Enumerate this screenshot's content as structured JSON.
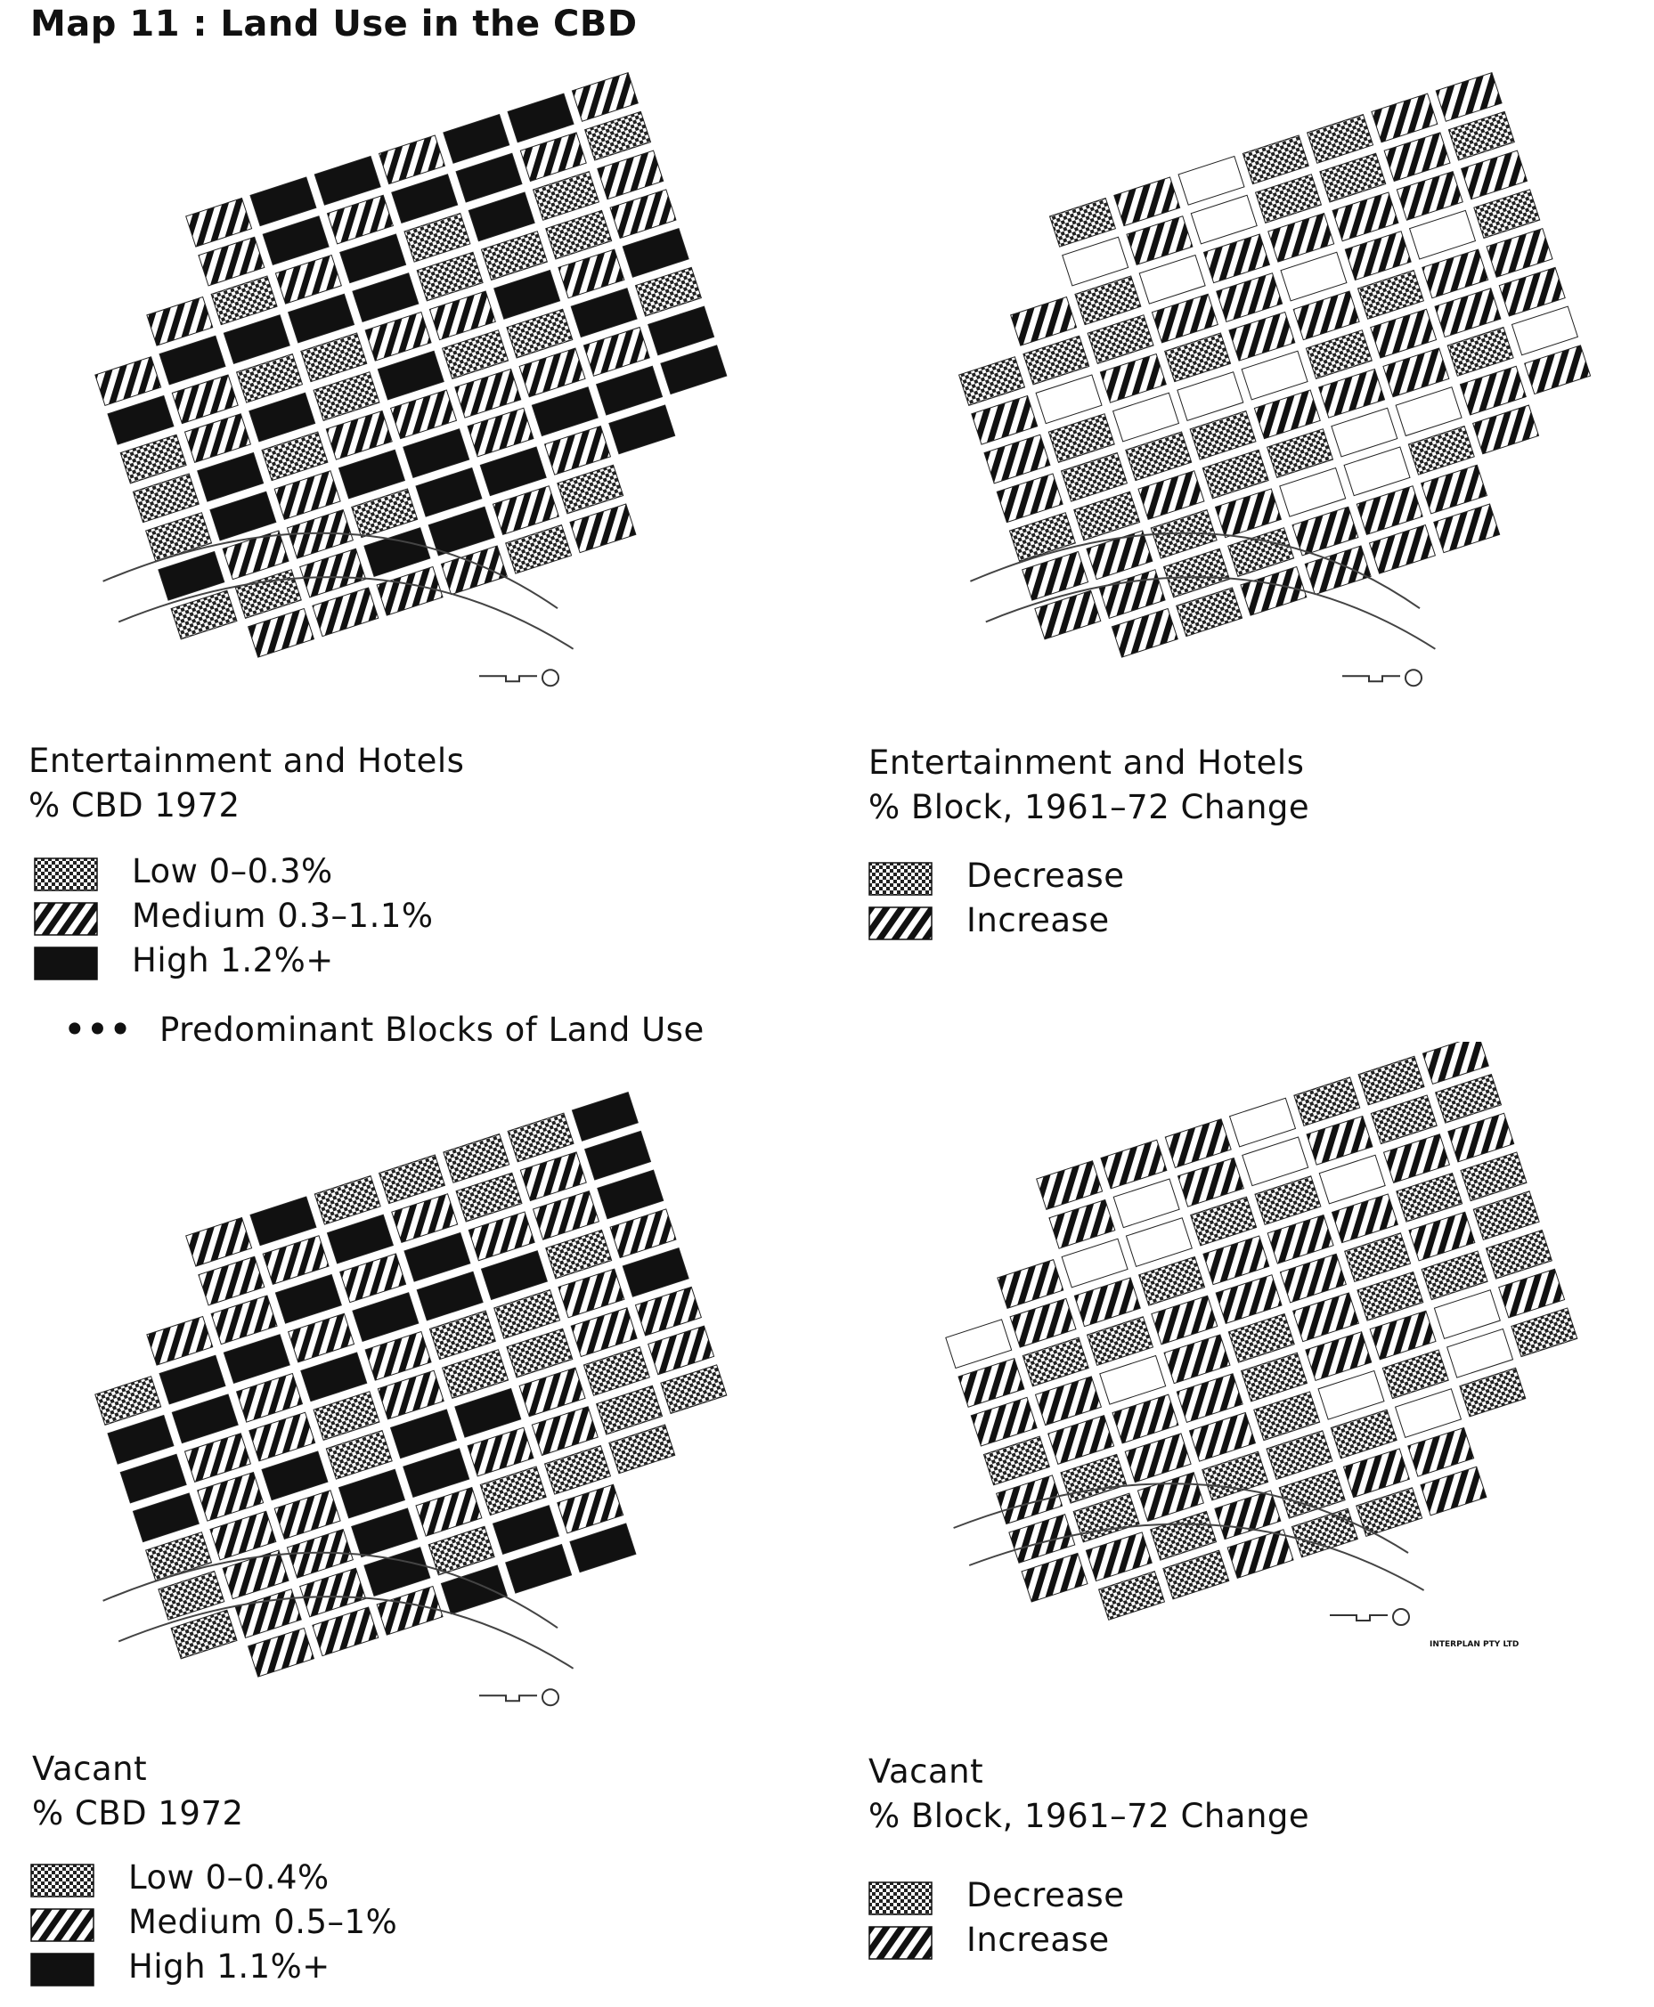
{
  "title": "Map 11 : Land Use in the CBD",
  "maps": [
    {
      "id": "ent-1972",
      "caption_line1": "Entertainment and Hotels",
      "caption_line2": "% CBD 1972",
      "legend": [
        {
          "pattern": "low",
          "label": "Low 0–0.3%"
        },
        {
          "pattern": "medium",
          "label": "Medium 0.3–1.1%"
        },
        {
          "pattern": "high",
          "label": "High 1.2%+"
        }
      ],
      "note_symbol": "•••",
      "note_label": "Predominant Blocks of Land Use"
    },
    {
      "id": "ent-change",
      "caption_line1": "Entertainment and Hotels",
      "caption_line2": "% Block, 1961–72 Change",
      "legend": [
        {
          "pattern": "low",
          "label": "Decrease"
        },
        {
          "pattern": "medium",
          "label": "Increase"
        }
      ]
    },
    {
      "id": "vac-1972",
      "caption_line1": "Vacant",
      "caption_line2": "% CBD 1972",
      "legend": [
        {
          "pattern": "low",
          "label": "Low 0–0.4%"
        },
        {
          "pattern": "medium",
          "label": "Medium 0.5–1%"
        },
        {
          "pattern": "high",
          "label": "High 1.1%+"
        }
      ]
    },
    {
      "id": "vac-change",
      "caption_line1": "Vacant",
      "caption_line2": "% Block, 1961–72 Change",
      "legend": [
        {
          "pattern": "low",
          "label": "Decrease"
        },
        {
          "pattern": "medium",
          "label": "Increase"
        }
      ],
      "credit": "INTERPLAN PTY LTD"
    }
  ],
  "colors": {
    "ink": "#111111",
    "paper": "#ffffff"
  }
}
